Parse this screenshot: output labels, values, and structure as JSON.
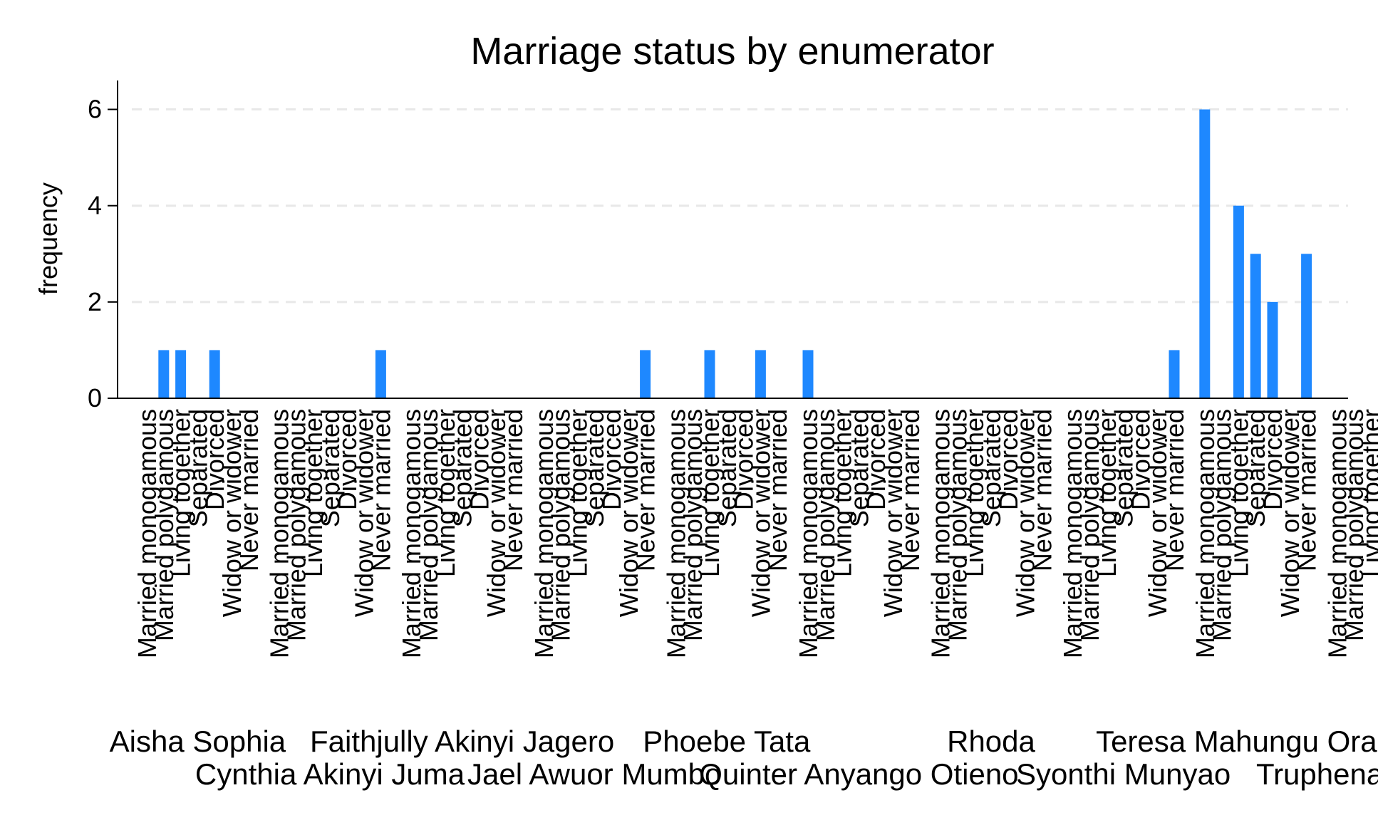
{
  "chart_data": {
    "type": "bar",
    "title": "Marriage status by enumerator",
    "ylabel": "frequency",
    "xlabel": "",
    "ylim": [
      0,
      6.6
    ],
    "yticks": [
      0,
      2,
      4,
      6
    ],
    "grid": true,
    "bar_color": "#1e88ff",
    "grid_color": "#e8e8e8",
    "categories": [
      "Married monogamous",
      "Married polygamous",
      "Living together",
      "Separated",
      "Divorced",
      "Widow or widower",
      "Never married"
    ],
    "groups": [
      {
        "name": "Aisha Sophia",
        "values": [
          0,
          1,
          1,
          0,
          1,
          0,
          0
        ]
      },
      {
        "name": "Cynthia Akinyi Juma",
        "values": [
          0,
          0,
          0,
          0,
          0,
          0,
          1
        ]
      },
      {
        "name": "Faithjully Akinyi Jagero",
        "values": [
          0,
          0,
          0,
          0,
          0,
          0,
          0
        ]
      },
      {
        "name": "Jael Awuor Mumbo",
        "values": [
          0,
          0,
          0,
          0,
          0,
          0,
          1
        ]
      },
      {
        "name": "Phoebe Tata",
        "values": [
          0,
          0,
          1,
          0,
          0,
          1,
          0
        ]
      },
      {
        "name": "Quinter Anyango Otieno",
        "values": [
          1,
          0,
          0,
          0,
          0,
          0,
          0
        ]
      },
      {
        "name": "Rhoda",
        "values": [
          0,
          0,
          0,
          0,
          0,
          0,
          0
        ]
      },
      {
        "name": "Syonthi Munyao",
        "values": [
          0,
          0,
          0,
          0,
          0,
          0,
          1
        ]
      },
      {
        "name": "Teresa Mahungu Orachi",
        "values": [
          6,
          0,
          4,
          3,
          2,
          0,
          3
        ]
      },
      {
        "name": "Truphena Akinyi Mo",
        "values": [
          0,
          0,
          0,
          0,
          0,
          0,
          0
        ]
      }
    ]
  }
}
